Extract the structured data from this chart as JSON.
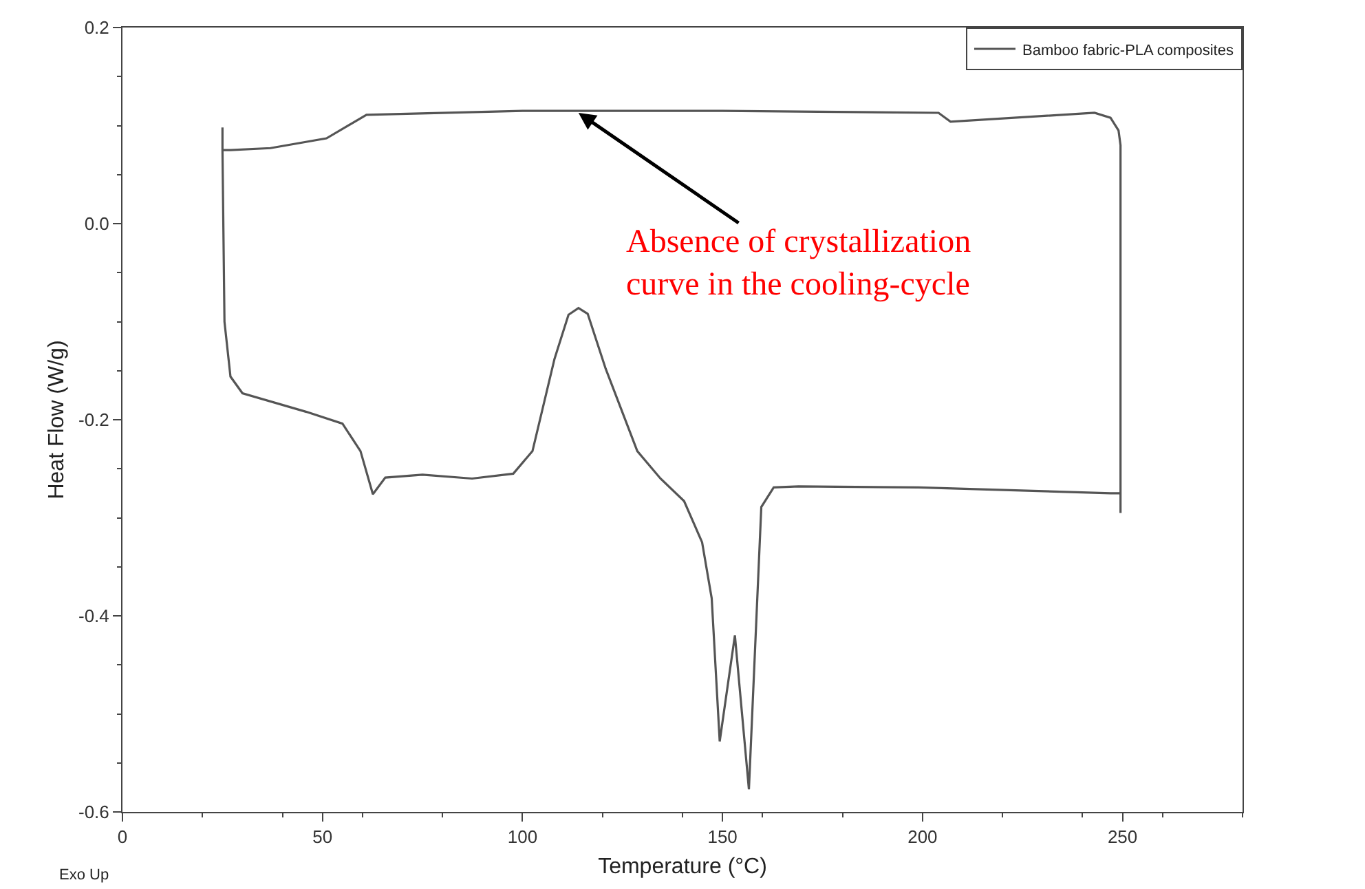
{
  "chart_data": {
    "type": "line",
    "xlabel": "Temperature (°C)",
    "ylabel": "Heat Flow (W/g)",
    "xlim": [
      0,
      280
    ],
    "ylim": [
      -0.6,
      0.2
    ],
    "xticks": [
      0,
      50,
      100,
      150,
      200,
      250
    ],
    "yticks": [
      {
        "value": -0.6,
        "label": "-0.6"
      },
      {
        "value": -0.4,
        "label": "-0.4"
      },
      {
        "value": -0.2,
        "label": "-0.2"
      },
      {
        "value": 0,
        "label": "0.0"
      },
      {
        "value": 0.2,
        "label": "0.2"
      }
    ],
    "legend": "top right",
    "marker": "none",
    "line_style": "solid",
    "series": [
      {
        "name": "Bamboo fabric-PLA composites",
        "color": "#555555",
        "x": [
          25,
          25,
          25.5,
          27,
          30,
          46,
          55,
          59.5,
          62.6,
          65.7,
          75,
          87.4,
          97.7,
          102.5,
          108,
          111.5,
          114,
          116.3,
          120.8,
          128.7,
          134.5,
          140.4,
          144.9,
          147.3,
          149.3,
          153.1,
          156.6,
          159.7,
          162.8,
          169,
          199,
          247,
          249.5,
          249.5,
          249.5,
          249.5,
          249,
          247,
          243,
          207,
          204,
          150,
          100,
          61,
          51,
          37,
          27,
          25
        ],
        "values": [
          0.098,
          0.075,
          -0.1,
          -0.156,
          -0.173,
          -0.192,
          -0.204,
          -0.232,
          -0.276,
          -0.259,
          -0.256,
          -0.26,
          -0.255,
          -0.232,
          -0.138,
          -0.093,
          -0.086,
          -0.092,
          -0.148,
          -0.232,
          -0.26,
          -0.283,
          -0.325,
          -0.382,
          -0.528,
          -0.42,
          -0.577,
          -0.289,
          -0.269,
          -0.268,
          -0.269,
          -0.275,
          -0.275,
          -0.295,
          -0.275,
          0.08,
          0.095,
          0.108,
          0.113,
          0.104,
          0.113,
          0.115,
          0.115,
          0.111,
          0.087,
          0.077,
          0.075,
          0.075
        ]
      }
    ],
    "annotations": [
      {
        "text": "Absence of crystallization\ncurve in the cooling-cycle",
        "x": 114,
        "y": 0.113
      },
      "Exo Up"
    ]
  }
}
